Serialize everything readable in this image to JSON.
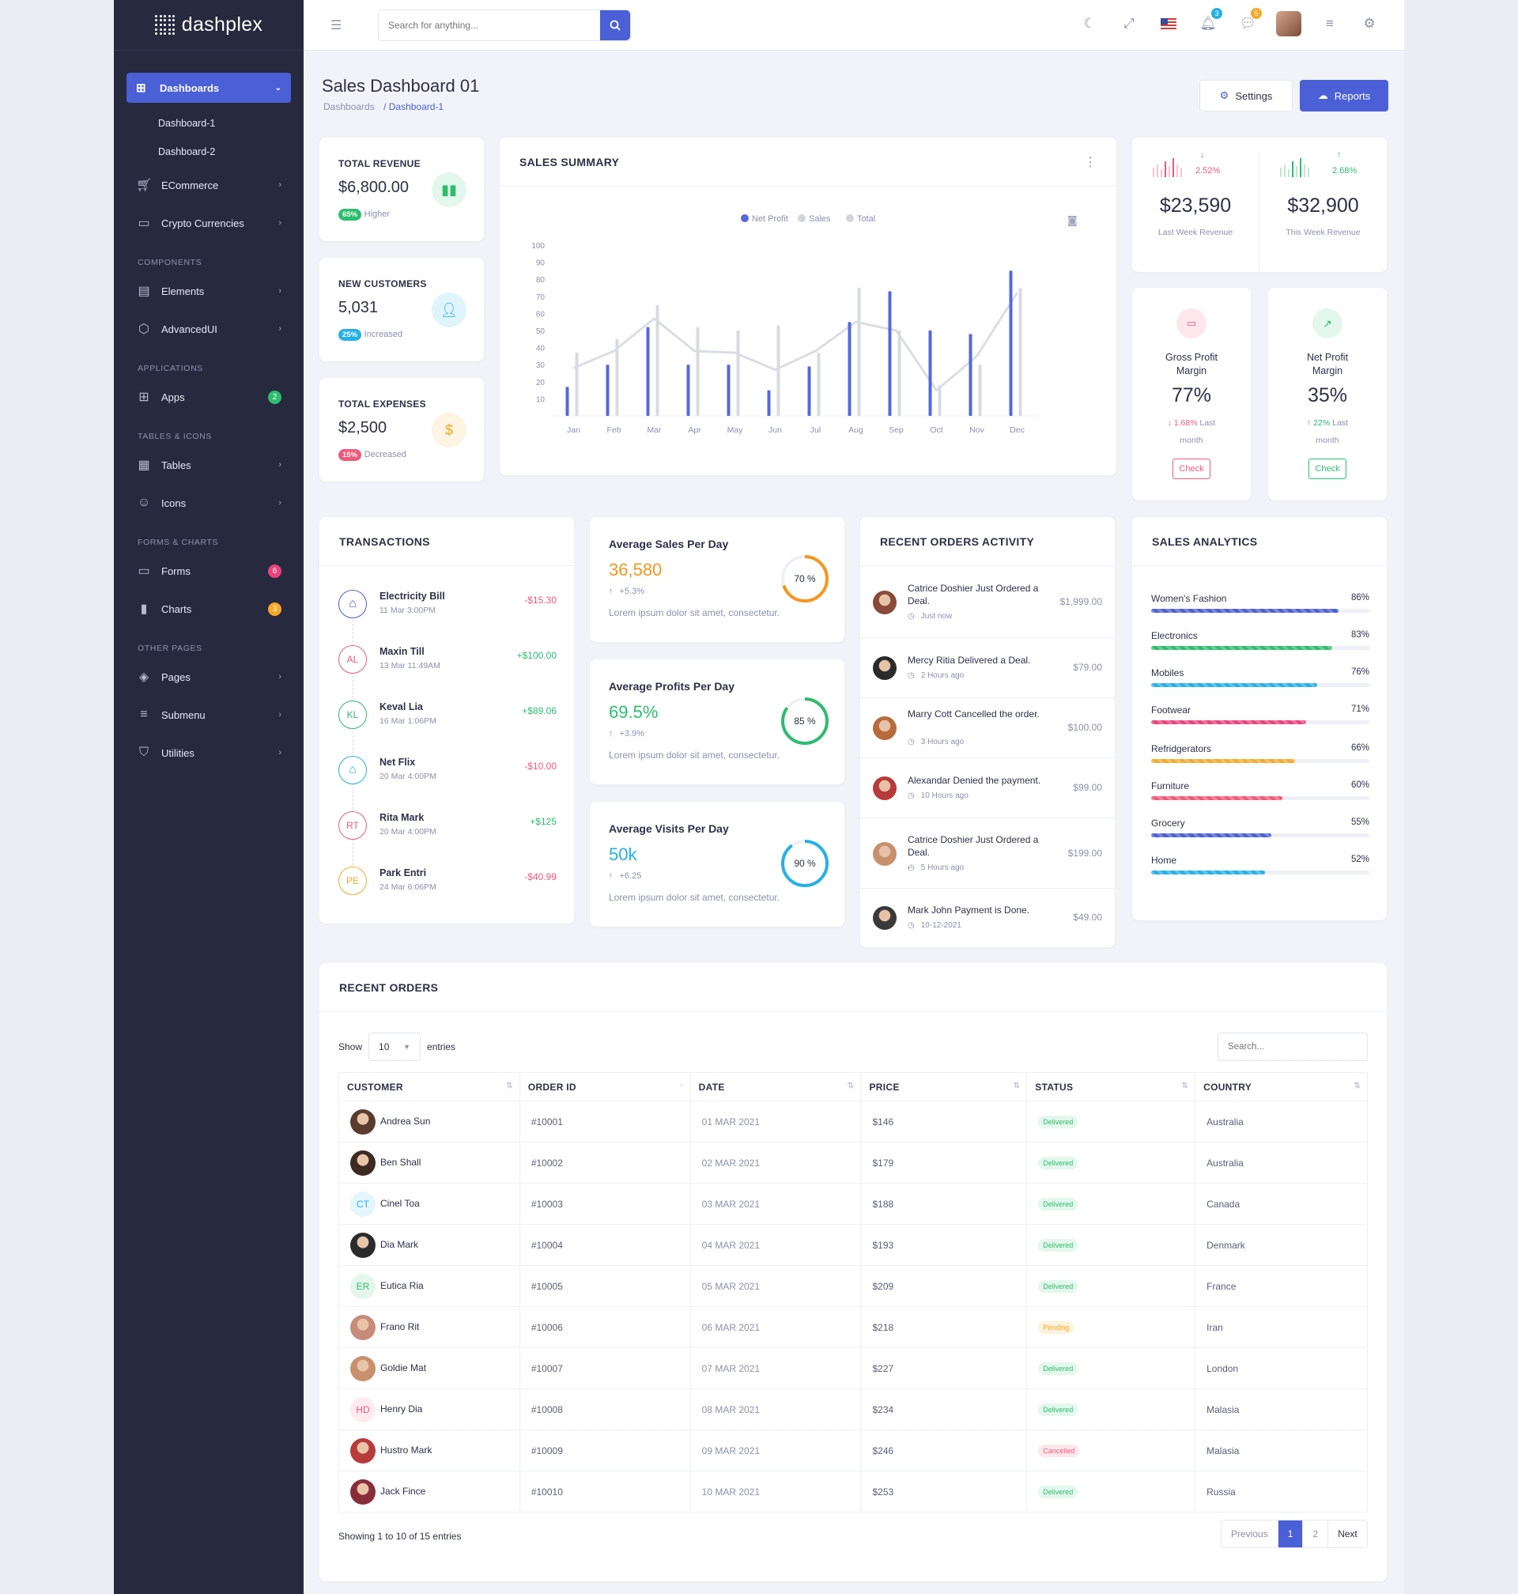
{
  "brand": {
    "name": "dashplex"
  },
  "sidebar": {
    "active": {
      "label": "Dashboards"
    },
    "subitems": [
      "Dashboard-1",
      "Dashboard-2"
    ],
    "items": [
      {
        "label": "ECommerce",
        "icon": "cart-icon"
      },
      {
        "label": "Crypto Currencies",
        "icon": "wallet-icon"
      }
    ],
    "sections": [
      {
        "title": "COMPONENTS",
        "items": [
          {
            "label": "Elements"
          },
          {
            "label": "AdvancedUI"
          }
        ]
      },
      {
        "title": "APPLICATIONS",
        "items": [
          {
            "label": "Apps",
            "badge": "2"
          }
        ]
      },
      {
        "title": "TABLES & ICONS",
        "items": [
          {
            "label": "Tables"
          },
          {
            "label": "Icons"
          }
        ]
      },
      {
        "title": "FORMS & CHARTS",
        "items": [
          {
            "label": "Forms",
            "badge": "6"
          },
          {
            "label": "Charts",
            "badge": "3"
          }
        ]
      },
      {
        "title": "OTHER PAGES",
        "items": [
          {
            "label": "Pages"
          },
          {
            "label": "Submenu"
          },
          {
            "label": "Utilities"
          }
        ]
      }
    ]
  },
  "topbar": {
    "search_placeholder": "Search for anything...",
    "notif_count": "3",
    "msg_count": "5"
  },
  "page": {
    "title": "Sales Dashboard 01",
    "breadcrumb": [
      "Dashboards",
      "/ Dashboard-1"
    ],
    "settings_label": "Settings",
    "reports_label": "Reports"
  },
  "stats": [
    {
      "label": "TOTAL REVENUE",
      "value": "$6,800.00",
      "pill": "65%",
      "note": "Higher",
      "color": "#2dbd6e"
    },
    {
      "label": "NEW CUSTOMERS",
      "value": "5,031",
      "pill": "25%",
      "note": "Increased",
      "color": "#24b1e8"
    },
    {
      "label": "TOTAL EXPENSES",
      "value": "$2,500",
      "pill": "15%",
      "note": "Decreased",
      "color": "#f0597a"
    }
  ],
  "sales_summary": {
    "title": "SALES SUMMARY"
  },
  "chart_data": {
    "type": "bar",
    "categories": [
      "Jan",
      "Feb",
      "Mar",
      "Apr",
      "May",
      "Jun",
      "Jul",
      "Aug",
      "Sep",
      "Oct",
      "Nov",
      "Dec"
    ],
    "series": [
      {
        "name": "Net Profit",
        "values": [
          17,
          30,
          52,
          30,
          30,
          15,
          29,
          55,
          73,
          50,
          48,
          85
        ]
      },
      {
        "name": "Sales",
        "values": [
          37,
          45,
          65,
          52,
          50,
          53,
          37,
          75,
          50,
          18,
          30,
          75
        ]
      },
      {
        "name": "Total",
        "values": [
          28,
          38,
          57,
          38,
          37,
          27,
          38,
          55,
          50,
          15,
          35,
          72
        ]
      }
    ],
    "series_types": [
      "bar",
      "bar",
      "line"
    ],
    "yticks": [
      10,
      20,
      30,
      40,
      50,
      60,
      70,
      80,
      90,
      100
    ],
    "ylim": [
      0,
      100
    ],
    "colors": [
      "#5468de",
      "#d9dbe3",
      "#dcdde4"
    ]
  },
  "revenue": [
    {
      "value": "$23,590",
      "label": "Last Week Revenue",
      "change": "2.52%",
      "dir": "down"
    },
    {
      "value": "$32,900",
      "label": "This Week Revenue",
      "change": "2.68%",
      "dir": "up"
    }
  ],
  "margins": [
    {
      "title1": "Gross Profit",
      "title2": "Margin",
      "value": "77%",
      "change": "1.68%",
      "note1": "Last",
      "note2": "month",
      "btn": "Check",
      "color": "#f0597a"
    },
    {
      "title1": "Net Profit",
      "title2": "Margin",
      "value": "35%",
      "change": "22%",
      "note1": "Last",
      "note2": "month",
      "btn": "Check",
      "color": "#2dbd6e"
    }
  ],
  "transactions": {
    "title": "TRANSACTIONS",
    "items": [
      {
        "name": "Electricity Bill",
        "date": "11 Mar 3:00PM",
        "amount": "-$15.30",
        "icon": "home-icon",
        "initials": "",
        "color": "#4b5fd6"
      },
      {
        "name": "Maxin Till",
        "date": "13 Mar 11:49AM",
        "amount": "+$100.00",
        "icon": "",
        "initials": "AL",
        "color": "#f0597a"
      },
      {
        "name": "Keval Lia",
        "date": "16 Mar 1:06PM",
        "amount": "+$89.06",
        "icon": "",
        "initials": "KL",
        "color": "#2dbd6e"
      },
      {
        "name": "Net Flix",
        "date": "20 Mar 4:00PM",
        "amount": "-$10.00",
        "icon": "home-icon",
        "initials": "",
        "color": "#24b1e8"
      },
      {
        "name": "Rita Mark",
        "date": "20 Mar 4:00PM",
        "amount": "+$125",
        "icon": "",
        "initials": "RT",
        "color": "#f0597a"
      },
      {
        "name": "Park Entri",
        "date": "24 Mar 6:06PM",
        "amount": "-$40.99",
        "icon": "",
        "initials": "PE",
        "color": "#f7a928"
      }
    ]
  },
  "averages": [
    {
      "title": "Average Sales Per Day",
      "value": "36,580",
      "change": "+5.3%",
      "desc": "Lorem ipsum dolor sit amet, consectetur.",
      "pct": 70,
      "pct_label": "70 %",
      "color": "#f7961e"
    },
    {
      "title": "Average Profits Per Day",
      "value": "69.5%",
      "change": "+3.9%",
      "desc": "Lorem ipsum dolor sit amet, consectetur.",
      "pct": 85,
      "pct_label": "85 %",
      "color": "#2dbd6e"
    },
    {
      "title": "Average Visits Per Day",
      "value": "50k",
      "change": "+6.25",
      "desc": "Lorem ipsum dolor sit amet, consectetur.",
      "pct": 90,
      "pct_label": "90 %",
      "color": "#24b1e8"
    }
  ],
  "activity": {
    "title": "RECENT ORDERS ACTIVITY",
    "items": [
      {
        "text": "Catrice Doshier Just Ordered a Deal.",
        "time": "Just now",
        "amount": "$1,999.00"
      },
      {
        "text": "Mercy Ritia Delivered a Deal.",
        "time": "2 Hours ago",
        "amount": "$79.00"
      },
      {
        "text": "Marry Cott Cancelled the order.",
        "time": "3 Hours ago",
        "amount": "$100.00"
      },
      {
        "text": "Alexandar Denied the payment.",
        "time": "10 Hours ago",
        "amount": "$99.00"
      },
      {
        "text": "Catrice Doshier Just Ordered a Deal.",
        "extra": ".",
        "time": "5 Hours ago",
        "amount": "$199.00"
      },
      {
        "text": "Mark John Payment is Done.",
        "time": "10-12-2021",
        "amount": "$49.00"
      }
    ]
  },
  "analytics": {
    "title": "SALES ANALYTICS",
    "items": [
      {
        "label": "Women's Fashion",
        "pct_label": "86%",
        "pct": 86,
        "color": "#4b5fd6"
      },
      {
        "label": "Electronics",
        "pct_label": "83%",
        "pct": 83,
        "color": "#2dbd6e"
      },
      {
        "label": "Mobiles",
        "pct_label": "76%",
        "pct": 76,
        "color": "#24b1e8"
      },
      {
        "label": "Footwear",
        "pct_label": "71%",
        "pct": 71,
        "color": "#e8437a"
      },
      {
        "label": "Refridgerators",
        "pct_label": "66%",
        "pct": 66,
        "color": "#f7a928"
      },
      {
        "label": "Furniture",
        "pct_label": "60%",
        "pct": 60,
        "color": "#f0597a"
      },
      {
        "label": "Grocery",
        "pct_label": "55%",
        "pct": 55,
        "color": "#4b5fd6"
      },
      {
        "label": "Home",
        "pct_label": "52%",
        "pct": 52,
        "color": "#24b1e8"
      }
    ]
  },
  "orders": {
    "title": "RECENT ORDERS",
    "show": "Show",
    "entries": "entries",
    "length": "10",
    "search_placeholder": "Search...",
    "columns": [
      "CUSTOMER",
      "ORDER ID",
      "DATE",
      "PRICE",
      "STATUS",
      "COUNTRY"
    ],
    "rows": [
      {
        "customer": "Andrea Sun",
        "id": "#10001",
        "date": "01 MAR 2021",
        "price": "$146",
        "status": "Delivered",
        "country": "Australia",
        "initials": "",
        "avatar": "#5a3b30"
      },
      {
        "customer": "Ben Shall",
        "id": "#10002",
        "date": "02 MAR 2021",
        "price": "$179",
        "status": "Delivered",
        "country": "Australia",
        "initials": "",
        "avatar": "#3d2a22"
      },
      {
        "customer": "Cinel Toa",
        "id": "#10003",
        "date": "03 MAR 2021",
        "price": "$188",
        "status": "Delivered",
        "country": "Canada",
        "initials": "CT",
        "avatar": "#24b1e8"
      },
      {
        "customer": "Dia Mark",
        "id": "#10004",
        "date": "04 MAR 2021",
        "price": "$193",
        "status": "Delivered",
        "country": "Denmark",
        "initials": "",
        "avatar": "#2b2b2b"
      },
      {
        "customer": "Eutica Ria",
        "id": "#10005",
        "date": "05 MAR 2021",
        "price": "$209",
        "status": "Delivered",
        "country": "France",
        "initials": "ER",
        "avatar": "#2dbd6e"
      },
      {
        "customer": "Frano Rit",
        "id": "#10006",
        "date": "06 MAR 2021",
        "price": "$218",
        "status": "Pending",
        "country": "Iran",
        "initials": "",
        "avatar": "#c78b7a"
      },
      {
        "customer": "Goldie Mat",
        "id": "#10007",
        "date": "07 MAR 2021",
        "price": "$227",
        "status": "Delivered",
        "country": "London",
        "initials": "",
        "avatar": "#c9906e"
      },
      {
        "customer": "Henry Dia",
        "id": "#10008",
        "date": "08 MAR 2021",
        "price": "$234",
        "status": "Delivered",
        "country": "Malasia",
        "initials": "HD",
        "avatar": "#f0597a"
      },
      {
        "customer": "Hustro Mark",
        "id": "#10009",
        "date": "09 MAR 2021",
        "price": "$246",
        "status": "Cancelled",
        "country": "Malasia",
        "initials": "",
        "avatar": "#b83a3a"
      },
      {
        "customer": "Jack Fince",
        "id": "#10010",
        "date": "10 MAR 2021",
        "price": "$253",
        "status": "Delivered",
        "country": "Russia",
        "initials": "",
        "avatar": "#8a2d3a"
      }
    ],
    "footer": "Showing 1 to 10 of 15 entries",
    "pagination": [
      "Previous",
      "1",
      "2",
      "Next"
    ]
  }
}
